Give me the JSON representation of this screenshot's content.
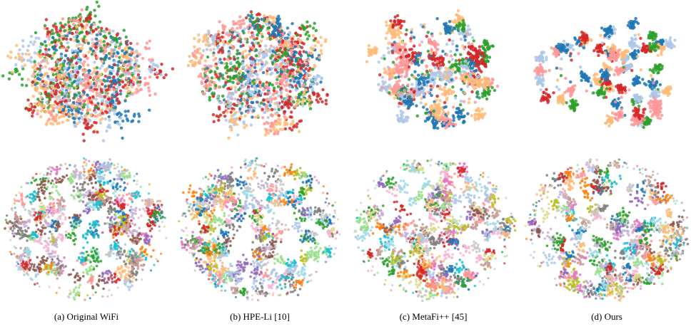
{
  "figure": {
    "captions": [
      "(a) Original WiFi",
      "(b) HPE-Li [10]",
      "(c) MetaFi++ [45]",
      "(d) Ours"
    ]
  }
}
